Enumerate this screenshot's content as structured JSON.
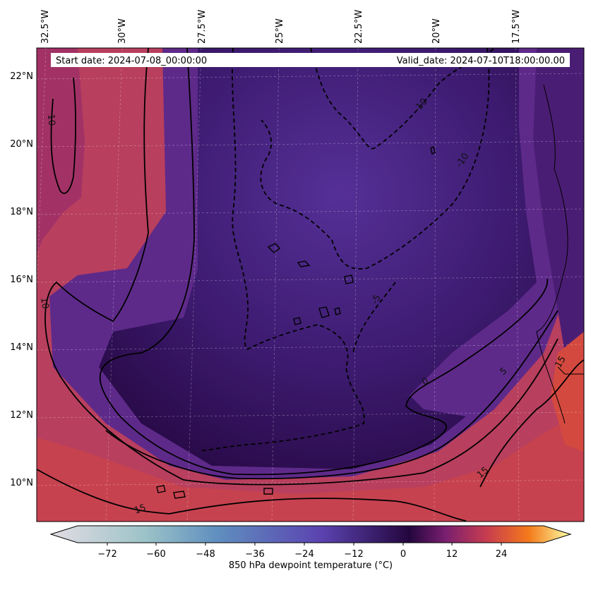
{
  "header": {
    "start_date": "Start date: 2024-07-08_00:00:00",
    "valid_date": "Valid_date: 2024-07-10T18:00:00.00"
  },
  "map": {
    "lon_labels": [
      "32.5°W",
      "30°W",
      "27.5°W",
      "25°W",
      "22.5°W",
      "20°W",
      "17.5°W"
    ],
    "lat_labels": [
      "22°N",
      "20°N",
      "18°N",
      "16°N",
      "14°N",
      "12°N",
      "10°N"
    ],
    "contour_labels": [
      "10",
      "-10",
      "-10",
      "10",
      "-5",
      "0",
      "5",
      "15",
      "15",
      "15"
    ]
  },
  "colorbar": {
    "label": "850 hPa dewpoint temperature (°C)",
    "ticks": [
      "−72",
      "−60",
      "−48",
      "−36",
      "−24",
      "−12",
      "0",
      "12",
      "24"
    ],
    "colors": {
      "low": "#e3dde4",
      "cold": "#5a9fb5",
      "mid": "#5b43b0",
      "zero": "#24063e",
      "warm": "#c23d57",
      "hot": "#fca50a",
      "high": "#fcffa4"
    }
  }
}
